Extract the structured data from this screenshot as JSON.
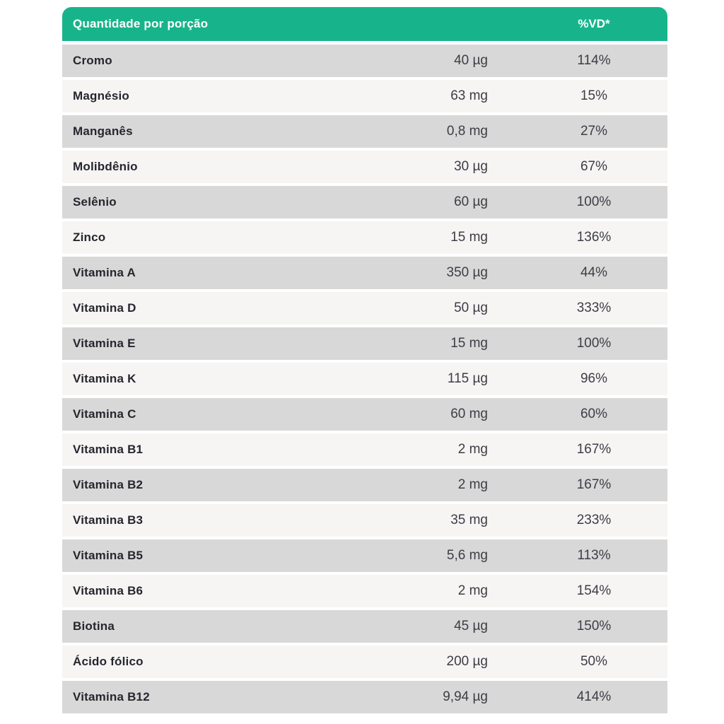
{
  "table": {
    "header": {
      "col_quantity": "Quantidade por porção",
      "col_dv": "%VD*"
    },
    "rows": [
      {
        "name": "Cromo",
        "amount": "40 µg",
        "dv": "114%"
      },
      {
        "name": "Magnésio",
        "amount": "63 mg",
        "dv": "15%"
      },
      {
        "name": "Manganês",
        "amount": "0,8 mg",
        "dv": "27%"
      },
      {
        "name": "Molibdênio",
        "amount": "30 µg",
        "dv": "67%"
      },
      {
        "name": "Selênio",
        "amount": "60 µg",
        "dv": "100%"
      },
      {
        "name": "Zinco",
        "amount": "15 mg",
        "dv": "136%"
      },
      {
        "name": "Vitamina A",
        "amount": "350 µg",
        "dv": "44%"
      },
      {
        "name": "Vitamina D",
        "amount": "50 µg",
        "dv": "333%"
      },
      {
        "name": "Vitamina E",
        "amount": "15 mg",
        "dv": "100%"
      },
      {
        "name": "Vitamina K",
        "amount": "115 µg",
        "dv": "96%"
      },
      {
        "name": "Vitamina C",
        "amount": "60 mg",
        "dv": "60%"
      },
      {
        "name": "Vitamina B1",
        "amount": "2 mg",
        "dv": "167%"
      },
      {
        "name": "Vitamina B2",
        "amount": "2 mg",
        "dv": "167%"
      },
      {
        "name": "Vitamina B3",
        "amount": "35 mg",
        "dv": "233%"
      },
      {
        "name": "Vitamina B5",
        "amount": "5,6 mg",
        "dv": "113%"
      },
      {
        "name": "Vitamina B6",
        "amount": "2 mg",
        "dv": "154%"
      },
      {
        "name": "Biotina",
        "amount": "45 µg",
        "dv": "150%"
      },
      {
        "name": "Ácido fólico",
        "amount": "200 µg",
        "dv": "50%"
      },
      {
        "name": "Vitamina B12",
        "amount": "9,94 µg",
        "dv": "414%"
      }
    ],
    "colors": {
      "header_bg": "#17b48b",
      "header_text": "#ffffff",
      "row_dark": "#d8d8d8",
      "row_light": "#f6f5f4",
      "name_text": "#26262e",
      "value_text": "#3d3d45"
    }
  }
}
